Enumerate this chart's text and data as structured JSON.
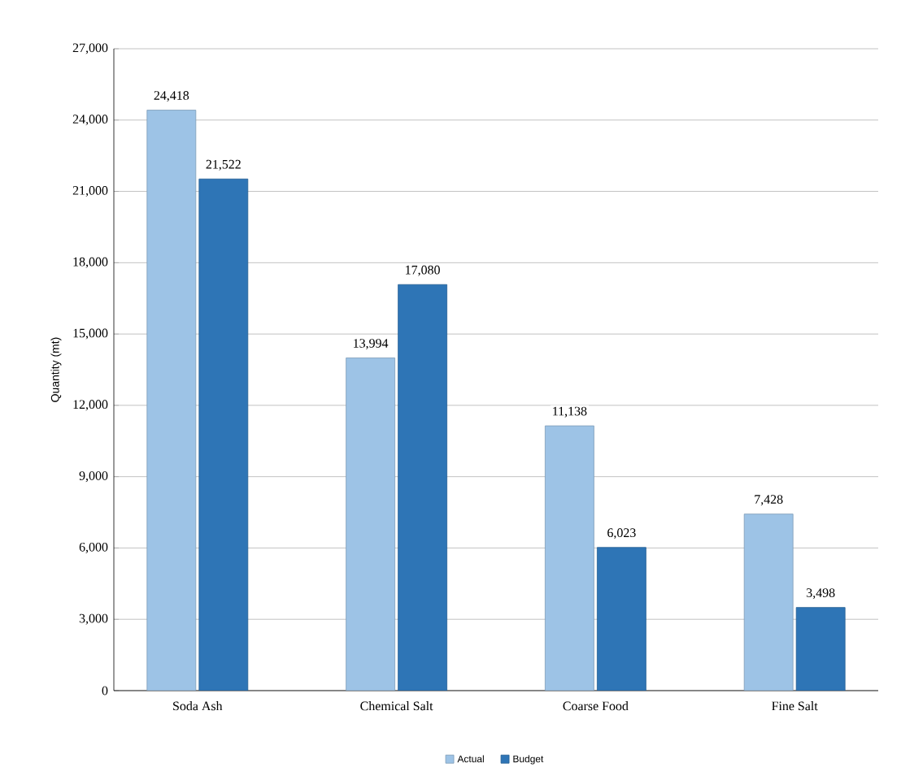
{
  "chart_data": {
    "type": "bar",
    "ylabel": "Quantity (mt)",
    "categories": [
      "Soda Ash",
      "Chemical Salt",
      "Coarse Food",
      "Fine Salt"
    ],
    "series": [
      {
        "name": "Actual",
        "color": "#9dc3e6",
        "values": [
          24418,
          13994,
          11138,
          7428
        ],
        "value_labels": [
          "24,418",
          "13,994",
          "11,138",
          "7,428"
        ]
      },
      {
        "name": "Budget",
        "color": "#2e75b6",
        "values": [
          21522,
          17080,
          6023,
          3498
        ],
        "value_labels": [
          "21,522",
          "17,080",
          "6,023",
          "3,498"
        ]
      }
    ],
    "ylim": [
      0,
      27000
    ],
    "yticks": [
      {
        "value": 0,
        "label": "0"
      },
      {
        "value": 3000,
        "label": "3,000"
      },
      {
        "value": 6000,
        "label": "6,000"
      },
      {
        "value": 9000,
        "label": "9,000"
      },
      {
        "value": 12000,
        "label": "12,000"
      },
      {
        "value": 15000,
        "label": "15,000"
      },
      {
        "value": 18000,
        "label": "18,000"
      },
      {
        "value": 21000,
        "label": "21,000"
      },
      {
        "value": 24000,
        "label": "24,000"
      },
      {
        "value": 27000,
        "label": "27,000"
      }
    ],
    "grid": "y",
    "legend": "bottom"
  }
}
